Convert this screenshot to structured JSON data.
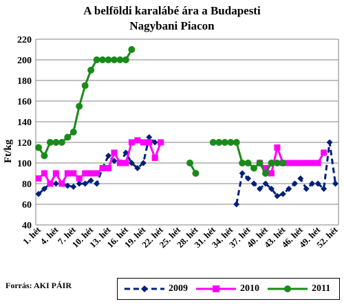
{
  "title_line1": "A belföldi karalábé ára a Budapesti",
  "title_line2": "Nagybani Piacon",
  "source": "Forrás: AKI PÁIR",
  "chart_data": {
    "type": "line",
    "ylabel": "Ft/kg",
    "xlabel": "",
    "ylim": [
      40,
      220
    ],
    "ytick_step": 20,
    "xlim": [
      1,
      53
    ],
    "grid": "horizontal",
    "x_tick_weeks": [
      1,
      4,
      7,
      10,
      13,
      16,
      19,
      22,
      25,
      28,
      31,
      34,
      37,
      40,
      43,
      46,
      49,
      52
    ],
    "x_tick_labels": [
      "1. hét",
      "4. hét",
      "7. hét",
      "10. hét",
      "13. hét",
      "16. hét",
      "19. hét",
      "22. hét",
      "25. hét",
      "28. hét",
      "31. hét",
      "34. hét",
      "37. hét",
      "40. hét",
      "43. hét",
      "46. hét",
      "49. hét",
      "52. hét"
    ],
    "legend_position": "bottom",
    "series": [
      {
        "name": "2009",
        "color": "#001f7a",
        "marker": "diamond",
        "dashed": true,
        "points": [
          [
            1,
            70
          ],
          [
            2,
            75
          ],
          [
            3,
            80
          ],
          [
            4,
            80
          ],
          [
            5,
            80
          ],
          [
            6,
            78
          ],
          [
            7,
            77
          ],
          [
            8,
            80
          ],
          [
            9,
            80
          ],
          [
            10,
            83
          ],
          [
            11,
            80
          ],
          [
            12,
            95
          ],
          [
            13,
            107
          ],
          [
            14,
            102
          ],
          [
            15,
            100
          ],
          [
            16,
            110
          ],
          [
            17,
            100
          ],
          [
            18,
            95
          ],
          [
            19,
            100
          ],
          [
            20,
            125
          ],
          [
            21,
            120
          ],
          [
            22,
            null
          ],
          [
            35,
            60
          ],
          [
            36,
            90
          ],
          [
            37,
            85
          ],
          [
            38,
            80
          ],
          [
            39,
            75
          ],
          [
            40,
            80
          ],
          [
            41,
            75
          ],
          [
            42,
            68
          ],
          [
            43,
            70
          ],
          [
            44,
            75
          ],
          [
            45,
            80
          ],
          [
            46,
            85
          ],
          [
            47,
            75
          ],
          [
            48,
            80
          ],
          [
            49,
            80
          ],
          [
            50,
            75
          ],
          [
            51,
            120
          ],
          [
            52,
            80
          ]
        ]
      },
      {
        "name": "2010",
        "color": "#ff00ff",
        "marker": "square",
        "dashed": false,
        "points": [
          [
            1,
            85
          ],
          [
            2,
            90
          ],
          [
            3,
            80
          ],
          [
            4,
            90
          ],
          [
            5,
            80
          ],
          [
            6,
            90
          ],
          [
            7,
            90
          ],
          [
            8,
            85
          ],
          [
            9,
            90
          ],
          [
            10,
            90
          ],
          [
            11,
            90
          ],
          [
            12,
            95
          ],
          [
            13,
            95
          ],
          [
            14,
            110
          ],
          [
            15,
            100
          ],
          [
            16,
            100
          ],
          [
            17,
            120
          ],
          [
            18,
            122
          ],
          [
            19,
            120
          ],
          [
            20,
            120
          ],
          [
            21,
            105
          ],
          [
            22,
            120
          ],
          [
            23,
            null
          ],
          [
            39,
            100
          ],
          [
            40,
            95
          ],
          [
            41,
            90
          ],
          [
            42,
            115
          ],
          [
            43,
            100
          ],
          [
            44,
            100
          ],
          [
            45,
            100
          ],
          [
            46,
            100
          ],
          [
            47,
            100
          ],
          [
            48,
            100
          ],
          [
            49,
            100
          ],
          [
            50,
            110
          ]
        ]
      },
      {
        "name": "2011",
        "color": "#1a8a1a",
        "marker": "circle",
        "dashed": false,
        "points": [
          [
            1,
            115
          ],
          [
            2,
            107
          ],
          [
            3,
            120
          ],
          [
            4,
            120
          ],
          [
            5,
            120
          ],
          [
            6,
            125
          ],
          [
            7,
            130
          ],
          [
            8,
            155
          ],
          [
            9,
            175
          ],
          [
            10,
            190
          ],
          [
            11,
            200
          ],
          [
            12,
            200
          ],
          [
            13,
            200
          ],
          [
            14,
            200
          ],
          [
            15,
            200
          ],
          [
            16,
            200
          ],
          [
            17,
            210
          ],
          [
            18,
            null
          ],
          [
            27,
            100
          ],
          [
            28,
            90
          ],
          [
            29,
            null
          ],
          [
            31,
            120
          ],
          [
            32,
            120
          ],
          [
            33,
            120
          ],
          [
            34,
            120
          ],
          [
            35,
            120
          ],
          [
            36,
            100
          ],
          [
            37,
            100
          ],
          [
            38,
            95
          ],
          [
            39,
            100
          ],
          [
            40,
            90
          ],
          [
            41,
            100
          ],
          [
            42,
            100
          ],
          [
            43,
            100
          ]
        ]
      }
    ]
  }
}
